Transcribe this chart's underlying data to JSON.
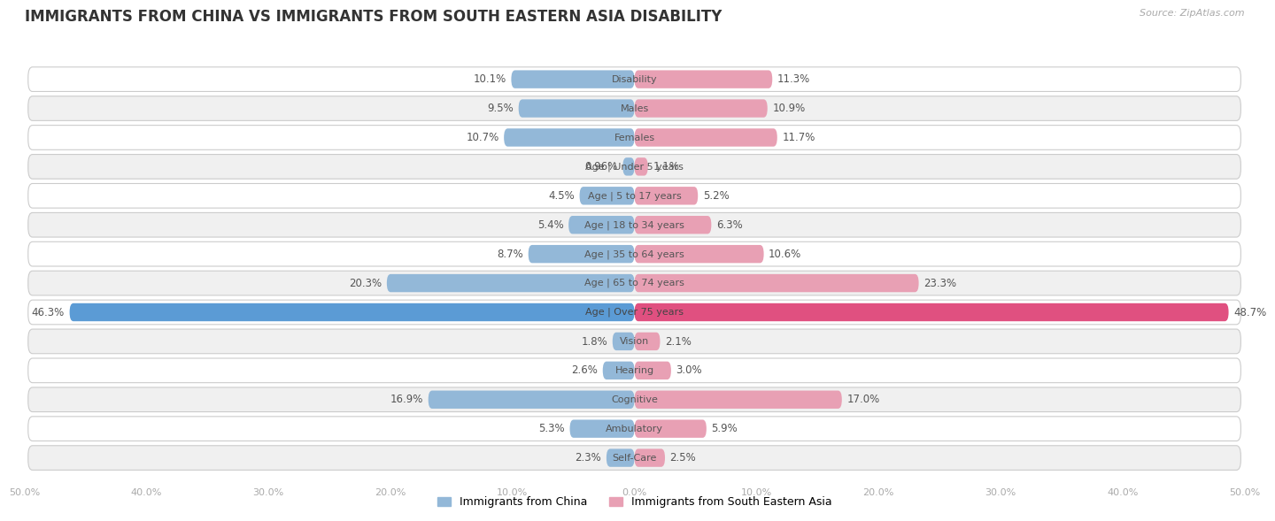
{
  "title": "IMMIGRANTS FROM CHINA VS IMMIGRANTS FROM SOUTH EASTERN ASIA DISABILITY",
  "source": "Source: ZipAtlas.com",
  "categories": [
    "Disability",
    "Males",
    "Females",
    "Age | Under 5 years",
    "Age | 5 to 17 years",
    "Age | 18 to 34 years",
    "Age | 35 to 64 years",
    "Age | 65 to 74 years",
    "Age | Over 75 years",
    "Vision",
    "Hearing",
    "Cognitive",
    "Ambulatory",
    "Self-Care"
  ],
  "china_values": [
    10.1,
    9.5,
    10.7,
    0.96,
    4.5,
    5.4,
    8.7,
    20.3,
    46.3,
    1.8,
    2.6,
    16.9,
    5.3,
    2.3
  ],
  "sea_values": [
    11.3,
    10.9,
    11.7,
    1.1,
    5.2,
    6.3,
    10.6,
    23.3,
    48.7,
    2.1,
    3.0,
    17.0,
    5.9,
    2.5
  ],
  "china_labels": [
    "10.1%",
    "9.5%",
    "10.7%",
    "0.96%",
    "4.5%",
    "5.4%",
    "8.7%",
    "20.3%",
    "46.3%",
    "1.8%",
    "2.6%",
    "16.9%",
    "5.3%",
    "2.3%"
  ],
  "sea_labels": [
    "11.3%",
    "10.9%",
    "11.7%",
    "1.1%",
    "5.2%",
    "6.3%",
    "10.6%",
    "23.3%",
    "48.7%",
    "2.1%",
    "3.0%",
    "17.0%",
    "5.9%",
    "2.5%"
  ],
  "china_color": "#93b8d8",
  "sea_color": "#e8a0b4",
  "china_color_highlight": "#5b9bd5",
  "sea_color_highlight": "#e05080",
  "max_val": 50.0,
  "legend_china": "Immigrants from China",
  "legend_sea": "Immigrants from South Eastern Asia",
  "bg_color": "#ffffff",
  "row_bg_odd": "#f0f0f0",
  "row_bg_even": "#ffffff",
  "title_fontsize": 12,
  "label_fontsize": 8.5,
  "category_fontsize": 8,
  "highlight_row": 8
}
